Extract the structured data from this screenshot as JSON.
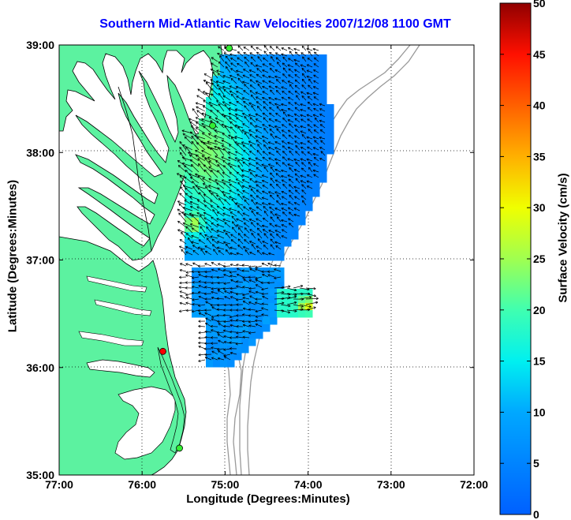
{
  "title": "Southern Mid-Atlantic Raw Velocities 2007/12/08 1100 GMT",
  "axes": {
    "xlabel": "Longitude (Degrees:Minutes)",
    "ylabel": "Latitude (Degrees:Minutes)",
    "x_ticks": [
      "77:00",
      "76:00",
      "75:00",
      "74:00",
      "73:00",
      "72:00"
    ],
    "y_ticks": [
      "39:00",
      "38:00",
      "37:00",
      "36:00",
      "35:00"
    ],
    "grid": "dotted"
  },
  "colorbar": {
    "label": "Surface Velocity (cm/s)",
    "ticks": [
      "50",
      "45",
      "40",
      "35",
      "30",
      "25",
      "20",
      "15",
      "10",
      "5",
      "0"
    ],
    "range": [
      0,
      50
    ],
    "colormap": "jet"
  },
  "colors": {
    "title": "#0000ff",
    "land": "#5cf2a0",
    "coastline": "#000000",
    "bathymetry": "#999999",
    "station_green": "#33ee33",
    "station_red": "#ff0000"
  },
  "stations": [
    {
      "color": "green",
      "lon": -74.95,
      "lat": 38.97
    },
    {
      "color": "green",
      "lon": -75.15,
      "lat": 38.25
    },
    {
      "color": "red",
      "lon": -75.75,
      "lat": 36.15
    },
    {
      "color": "green",
      "lon": -75.55,
      "lat": 35.25
    }
  ]
}
